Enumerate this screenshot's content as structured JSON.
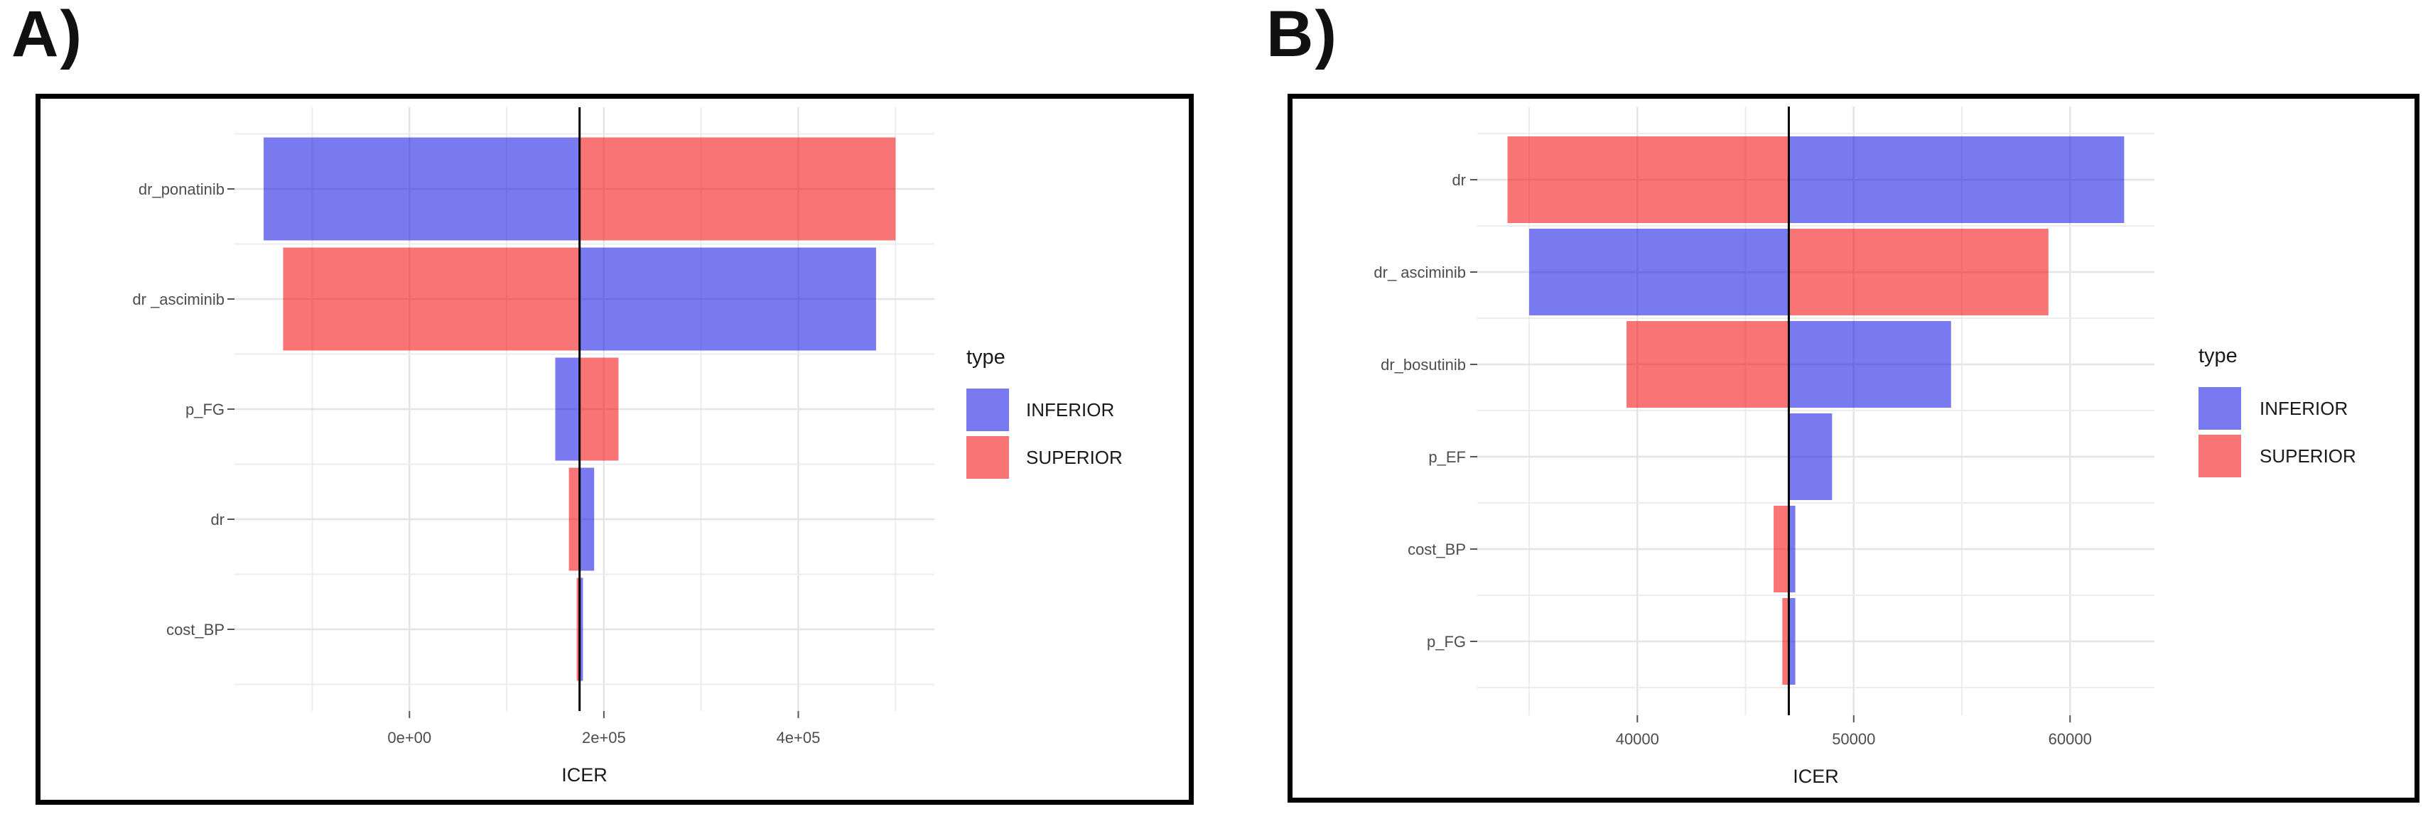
{
  "figure": {
    "panel_a_label": "A)",
    "panel_b_label": "B)"
  },
  "colors": {
    "INFERIOR": "rgba(25,25,230,0.58)",
    "SUPERIOR": "rgba(245,15,15,0.58)",
    "baseline_line": "#000000",
    "gridline_major": "#e4e4e4",
    "gridline_minor": "#ececec",
    "tick_mark": "#555555"
  },
  "chart_data": [
    {
      "id": "A",
      "type": "bar",
      "subtype": "tornado",
      "title": "",
      "xlabel": "ICER",
      "ylabel": "",
      "xlim": [
        -180000,
        540000
      ],
      "baseline": 175000,
      "grid": true,
      "legend_position": "right",
      "legend": {
        "title": "type",
        "entries": [
          {
            "label": "INFERIOR",
            "type": "INFERIOR"
          },
          {
            "label": "SUPERIOR",
            "type": "SUPERIOR"
          }
        ]
      },
      "x_major_ticks": [
        {
          "value": 0,
          "label": "0e+00"
        },
        {
          "value": 200000,
          "label": "2e+05"
        },
        {
          "value": 400000,
          "label": "4e+05"
        }
      ],
      "x_minor_ticks": [
        -100000,
        100000,
        300000,
        500000
      ],
      "rows": [
        {
          "label": "dr_ponatinib",
          "segments": [
            {
              "type": "INFERIOR",
              "from": -150000,
              "to": 175000
            },
            {
              "type": "SUPERIOR",
              "from": 175000,
              "to": 500000
            }
          ]
        },
        {
          "label": "dr _asciminib",
          "segments": [
            {
              "type": "SUPERIOR",
              "from": -130000,
              "to": 175000
            },
            {
              "type": "INFERIOR",
              "from": 175000,
              "to": 480000
            }
          ]
        },
        {
          "label": "p_FG",
          "segments": [
            {
              "type": "INFERIOR",
              "from": 150000,
              "to": 175000
            },
            {
              "type": "SUPERIOR",
              "from": 175000,
              "to": 215000
            }
          ]
        },
        {
          "label": "dr",
          "segments": [
            {
              "type": "SUPERIOR",
              "from": 164000,
              "to": 175000
            },
            {
              "type": "INFERIOR",
              "from": 175000,
              "to": 190000
            }
          ]
        },
        {
          "label": "cost_BP",
          "segments": [
            {
              "type": "SUPERIOR",
              "from": 172000,
              "to": 175000
            },
            {
              "type": "INFERIOR",
              "from": 175000,
              "to": 178500
            }
          ]
        }
      ]
    },
    {
      "id": "B",
      "type": "bar",
      "subtype": "tornado",
      "title": "",
      "xlabel": "ICER",
      "ylabel": "",
      "xlim": [
        32600,
        63900
      ],
      "baseline": 47000,
      "grid": true,
      "legend_position": "right",
      "legend": {
        "title": "type",
        "entries": [
          {
            "label": "INFERIOR",
            "type": "INFERIOR"
          },
          {
            "label": "SUPERIOR",
            "type": "SUPERIOR"
          }
        ]
      },
      "x_major_ticks": [
        {
          "value": 40000,
          "label": "40000"
        },
        {
          "value": 50000,
          "label": "50000"
        },
        {
          "value": 60000,
          "label": "60000"
        }
      ],
      "x_minor_ticks": [
        35000,
        45000,
        55000
      ],
      "rows": [
        {
          "label": "dr",
          "segments": [
            {
              "type": "SUPERIOR",
              "from": 34000,
              "to": 47000
            },
            {
              "type": "INFERIOR",
              "from": 47000,
              "to": 62500
            }
          ]
        },
        {
          "label": "dr_ asciminib",
          "segments": [
            {
              "type": "INFERIOR",
              "from": 35000,
              "to": 47000
            },
            {
              "type": "SUPERIOR",
              "from": 47000,
              "to": 59000
            }
          ]
        },
        {
          "label": "dr_bosutinib",
          "segments": [
            {
              "type": "SUPERIOR",
              "from": 39500,
              "to": 47000
            },
            {
              "type": "INFERIOR",
              "from": 47000,
              "to": 54500
            }
          ]
        },
        {
          "label": "p_EF",
          "segments": [
            {
              "type": "INFERIOR",
              "from": 47000,
              "to": 49000
            }
          ]
        },
        {
          "label": "cost_BP",
          "segments": [
            {
              "type": "SUPERIOR",
              "from": 46300,
              "to": 47000
            },
            {
              "type": "INFERIOR",
              "from": 47000,
              "to": 47300
            }
          ]
        },
        {
          "label": "p_FG",
          "segments": [
            {
              "type": "SUPERIOR",
              "from": 46700,
              "to": 47000
            },
            {
              "type": "INFERIOR",
              "from": 47000,
              "to": 47300
            }
          ]
        }
      ]
    }
  ]
}
